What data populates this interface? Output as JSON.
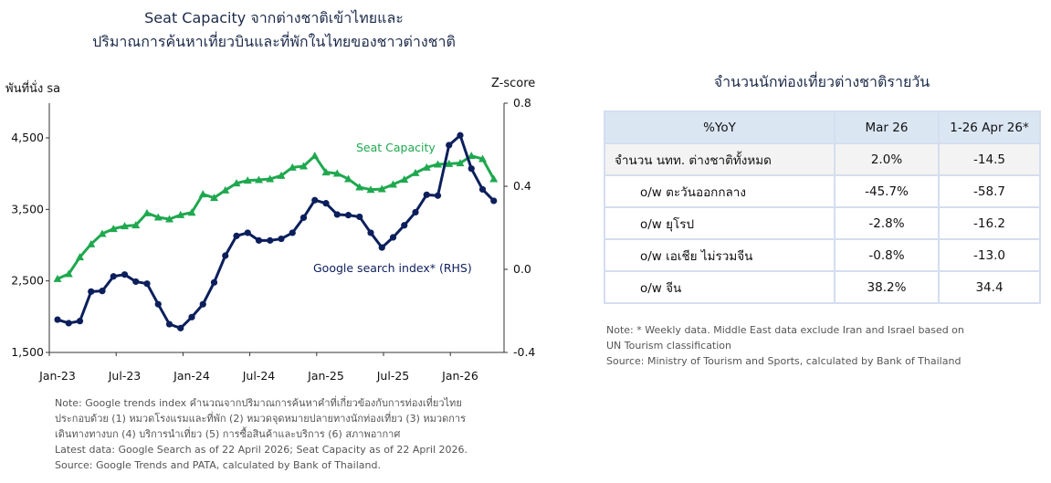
{
  "chart_data": {
    "type": "line",
    "title_line1": "Seat Capacity จากต่างชาติเข้าไทยและ",
    "title_line2": "ปริมาณการค้นหาเที่ยวบินและที่พักในไทยของชาวต่างชาติ",
    "ylabel_left": "พันที่นั่ง sa",
    "ylabel_right": "Z-score",
    "ylim_left": [
      1500,
      5000
    ],
    "ylim_right": [
      -0.4,
      0.8
    ],
    "yticks_left": [
      "1,500",
      "2,500",
      "3,500",
      "4,500"
    ],
    "yticks_left_values": [
      1500,
      2500,
      3500,
      4500
    ],
    "yticks_right": [
      "-0.4",
      "0.0",
      "0.4",
      "0.8"
    ],
    "yticks_right_values": [
      -0.4,
      0.0,
      0.4,
      0.8
    ],
    "xticks": [
      "Jan-23",
      "Jul-23",
      "Jan-24",
      "Jul-24",
      "Jan-25",
      "Jul-25",
      "Jan-26"
    ],
    "xticks_month_index": [
      0,
      6,
      12,
      18,
      24,
      30,
      36
    ],
    "series": [
      {
        "name": "Seat Capacity",
        "axis": "left",
        "color": "#1fa84f",
        "marker": "triangle",
        "values": [
          2530,
          2598,
          2832,
          3015,
          3160,
          3228,
          3266,
          3279,
          3449,
          3389,
          3364,
          3423,
          3457,
          3713,
          3662,
          3768,
          3866,
          3904,
          3913,
          3925,
          3972,
          4087,
          4104,
          4249,
          4019,
          4002,
          3925,
          3810,
          3776,
          3785,
          3849,
          3917,
          4010,
          4087,
          4130,
          4138,
          4147,
          4249,
          4206,
          3925
        ]
      },
      {
        "name": "Google search index* (RHS)",
        "axis": "right",
        "color": "#0c1f5c",
        "marker": "circle",
        "values": [
          -0.242,
          -0.259,
          -0.249,
          -0.107,
          -0.104,
          -0.034,
          -0.025,
          -0.059,
          -0.069,
          -0.168,
          -0.264,
          -0.283,
          -0.23,
          -0.168,
          -0.063,
          0.066,
          0.161,
          0.176,
          0.139,
          0.139,
          0.147,
          0.176,
          0.249,
          0.333,
          0.318,
          0.264,
          0.261,
          0.253,
          0.176,
          0.105,
          0.154,
          0.212,
          0.275,
          0.359,
          0.355,
          0.598,
          0.645,
          0.485,
          0.385,
          0.33
        ]
      }
    ]
  },
  "chart_notes": [
    "Note: Google trends index คำนวณจากปริมาณการค้นหาคำที่เกี่ยวข้องกับการท่องเที่ยวไทย",
    "ประกอบด้วย (1) หมวดโรงแรมและที่พัก (2) หมวดจุดหมายปลายทางนักท่องเที่ยว (3) หมวดการ",
    "เดินทางทางบก (4) บริการนำเที่ยว (5) การซื้อสินค้าและบริการ (6) สภาพอากาศ",
    "Latest data: Google Search as of 22 April 2026; Seat Capacity as of 22 April 2026.",
    "Source: Google Trends and PATA, calculated by Bank of Thailand."
  ],
  "table": {
    "title": "จำนวนนักท่องเที่ยวต่างชาติรายวัน",
    "headers": [
      "%YoY",
      "Mar 26",
      "1-26 Apr 26*"
    ],
    "rows": [
      [
        "จำนวน นทท. ต่างชาติทั้งหมด",
        "2.0%",
        "-14.5"
      ],
      [
        "o/w ตะวันออกกลาง",
        "-45.7%",
        "-58.7"
      ],
      [
        "o/w ยุโรป",
        "-2.8%",
        "-16.2"
      ],
      [
        "o/w เอเชีย ไม่รวมจีน",
        "-0.8%",
        "-13.0"
      ],
      [
        "o/w จีน",
        "38.2%",
        "34.4"
      ]
    ],
    "notes": [
      "Note: * Weekly data. Middle East data exclude Iran and Israel based on",
      "UN Tourism classification",
      "Source: Ministry of Tourism and Sports, calculated by Bank of Thailand"
    ]
  }
}
